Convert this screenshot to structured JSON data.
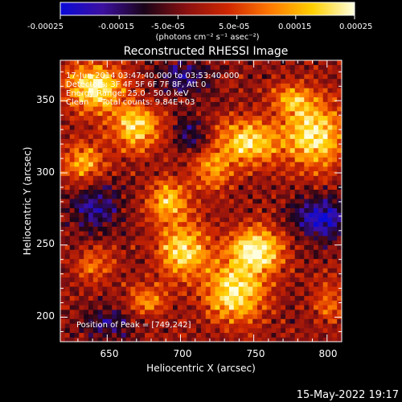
{
  "chart_data": {
    "type": "heatmap",
    "title": "Reconstructed RHESSI Image",
    "xlabel": "Heliocentric X (arcsec)",
    "ylabel": "Heliocentric Y (arcsec)",
    "xlim": [
      618,
      810
    ],
    "ylim": [
      183,
      378
    ],
    "x_ticks": [
      "650",
      "700",
      "750",
      "800"
    ],
    "y_ticks": [
      "200",
      "250",
      "300",
      "350"
    ],
    "colorbar": {
      "range": [
        -0.00025,
        0.00025
      ],
      "tick_labels": [
        "-0.00025",
        "-0.00015",
        "-5.0e-05",
        "5.0e-05",
        "0.00015",
        "0.00025"
      ],
      "unit_label": "(photons cm⁻² s⁻¹ asec⁻²)",
      "colors": [
        "#0a0ad8",
        "#3c10a0",
        "#1a0418",
        "#8a1010",
        "#d02800",
        "#ff7a00",
        "#ffd000",
        "#ffffe0"
      ]
    },
    "annotations": [
      "17-Jun-2014 03:47:40.000 to 03:53:40.000",
      "Detectors: 3F 4F 5F 6F 7F 8F, Att 0",
      "Energy Range: 25.0 - 50.0 keV",
      "Clean     Total counts: 9.84E+03"
    ],
    "peak_label": "Position of Peak = [749,242]",
    "hotspots": [
      {
        "x": 640,
        "y": 358,
        "amp": 0.00026,
        "sx": 14,
        "sy": 12
      },
      {
        "x": 668,
        "y": 330,
        "amp": 0.00023,
        "sx": 12,
        "sy": 11
      },
      {
        "x": 632,
        "y": 305,
        "amp": 0.00018,
        "sx": 10,
        "sy": 10
      },
      {
        "x": 700,
        "y": 245,
        "amp": 0.00024,
        "sx": 12,
        "sy": 14
      },
      {
        "x": 690,
        "y": 280,
        "amp": 0.0002,
        "sx": 10,
        "sy": 10
      },
      {
        "x": 745,
        "y": 320,
        "amp": 0.00024,
        "sx": 15,
        "sy": 11
      },
      {
        "x": 790,
        "y": 325,
        "amp": 0.00026,
        "sx": 14,
        "sy": 16
      },
      {
        "x": 775,
        "y": 350,
        "amp": 0.00016,
        "sx": 10,
        "sy": 8
      },
      {
        "x": 750,
        "y": 245,
        "amp": 0.00028,
        "sx": 13,
        "sy": 11
      },
      {
        "x": 735,
        "y": 215,
        "amp": 0.00026,
        "sx": 14,
        "sy": 14
      },
      {
        "x": 720,
        "y": 300,
        "amp": 0.00016,
        "sx": 9,
        "sy": 9
      },
      {
        "x": 675,
        "y": 210,
        "amp": 0.00014,
        "sx": 10,
        "sy": 8
      },
      {
        "x": 640,
        "y": 235,
        "amp": 0.00012,
        "sx": 9,
        "sy": 9
      },
      {
        "x": 800,
        "y": 210,
        "amp": 0.00012,
        "sx": 8,
        "sy": 10
      }
    ],
    "coldspots": [
      {
        "x": 795,
        "y": 268,
        "amp": -0.0002,
        "sx": 14,
        "sy": 10
      },
      {
        "x": 640,
        "y": 275,
        "amp": -0.00014,
        "sx": 12,
        "sy": 12
      },
      {
        "x": 700,
        "y": 365,
        "amp": -0.00014,
        "sx": 12,
        "sy": 8
      },
      {
        "x": 705,
        "y": 325,
        "amp": -0.00012,
        "sx": 8,
        "sy": 8
      },
      {
        "x": 650,
        "y": 195,
        "amp": -0.00012,
        "sx": 12,
        "sy": 8
      }
    ]
  },
  "footer_date": "15-May-2022 19:17"
}
